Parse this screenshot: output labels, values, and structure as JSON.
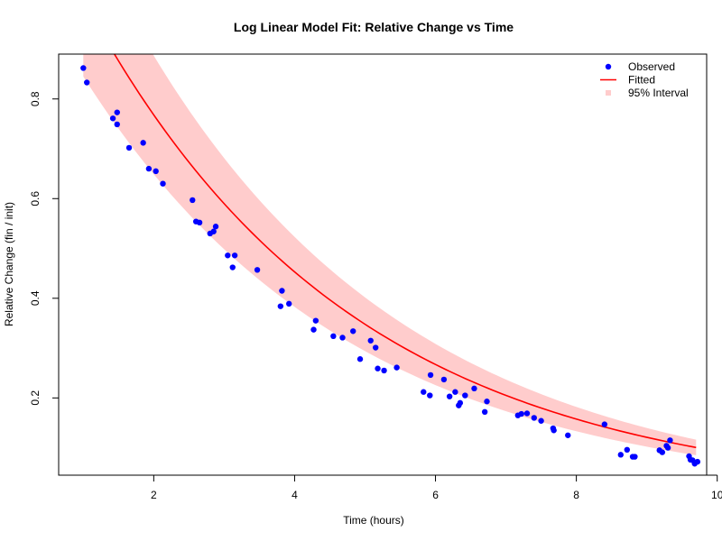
{
  "chart_data": {
    "type": "scatter",
    "title": "Log Linear Model Fit: Relative Change vs Time",
    "xlabel": "Time (hours)",
    "ylabel": "Relative Change (fin / init)",
    "xlim": [
      0.65,
      9.85
    ],
    "ylim": [
      0.045,
      0.89
    ],
    "xticks": [
      2,
      4,
      6,
      8,
      10
    ],
    "yticks": [
      0.2,
      0.4,
      0.6,
      0.8
    ],
    "grid": false,
    "legend_position": "top-right",
    "colors": {
      "observed": "#0000ff",
      "fitted": "#ff0000",
      "interval": "#ffcccc"
    },
    "legend": [
      {
        "label": "Observed",
        "kind": "point"
      },
      {
        "label": "Fitted",
        "kind": "line"
      },
      {
        "label": "95% Interval",
        "kind": "band"
      }
    ],
    "fit": {
      "a": 1.0,
      "b": 0.264
    },
    "interval": {
      "start": 1.0,
      "end": 9.7,
      "lower_ratio": 0.845,
      "upper_ratio": 1.155
    },
    "observed": [
      {
        "x": 1.0,
        "y": 0.862
      },
      {
        "x": 1.05,
        "y": 0.833
      },
      {
        "x": 1.42,
        "y": 0.761
      },
      {
        "x": 1.48,
        "y": 0.773
      },
      {
        "x": 1.48,
        "y": 0.749
      },
      {
        "x": 1.65,
        "y": 0.702
      },
      {
        "x": 1.85,
        "y": 0.712
      },
      {
        "x": 1.93,
        "y": 0.66
      },
      {
        "x": 2.03,
        "y": 0.655
      },
      {
        "x": 2.13,
        "y": 0.63
      },
      {
        "x": 2.55,
        "y": 0.597
      },
      {
        "x": 2.6,
        "y": 0.554
      },
      {
        "x": 2.65,
        "y": 0.552
      },
      {
        "x": 2.8,
        "y": 0.53
      },
      {
        "x": 2.85,
        "y": 0.534
      },
      {
        "x": 2.88,
        "y": 0.544
      },
      {
        "x": 3.05,
        "y": 0.486
      },
      {
        "x": 3.12,
        "y": 0.462
      },
      {
        "x": 3.15,
        "y": 0.486
      },
      {
        "x": 3.47,
        "y": 0.457
      },
      {
        "x": 3.8,
        "y": 0.384
      },
      {
        "x": 3.82,
        "y": 0.415
      },
      {
        "x": 3.92,
        "y": 0.389
      },
      {
        "x": 4.27,
        "y": 0.337
      },
      {
        "x": 4.3,
        "y": 0.355
      },
      {
        "x": 4.55,
        "y": 0.324
      },
      {
        "x": 4.68,
        "y": 0.321
      },
      {
        "x": 4.83,
        "y": 0.334
      },
      {
        "x": 4.93,
        "y": 0.278
      },
      {
        "x": 5.08,
        "y": 0.315
      },
      {
        "x": 5.15,
        "y": 0.301
      },
      {
        "x": 5.18,
        "y": 0.259
      },
      {
        "x": 5.27,
        "y": 0.255
      },
      {
        "x": 5.45,
        "y": 0.261
      },
      {
        "x": 5.83,
        "y": 0.212
      },
      {
        "x": 5.92,
        "y": 0.205
      },
      {
        "x": 5.93,
        "y": 0.246
      },
      {
        "x": 6.12,
        "y": 0.237
      },
      {
        "x": 6.2,
        "y": 0.203
      },
      {
        "x": 6.28,
        "y": 0.212
      },
      {
        "x": 6.33,
        "y": 0.185
      },
      {
        "x": 6.35,
        "y": 0.19
      },
      {
        "x": 6.42,
        "y": 0.205
      },
      {
        "x": 6.55,
        "y": 0.219
      },
      {
        "x": 6.7,
        "y": 0.172
      },
      {
        "x": 6.73,
        "y": 0.193
      },
      {
        "x": 7.17,
        "y": 0.165
      },
      {
        "x": 7.22,
        "y": 0.168
      },
      {
        "x": 7.3,
        "y": 0.169
      },
      {
        "x": 7.4,
        "y": 0.16
      },
      {
        "x": 7.5,
        "y": 0.154
      },
      {
        "x": 7.67,
        "y": 0.139
      },
      {
        "x": 7.68,
        "y": 0.135
      },
      {
        "x": 7.88,
        "y": 0.125
      },
      {
        "x": 8.4,
        "y": 0.147
      },
      {
        "x": 8.63,
        "y": 0.086
      },
      {
        "x": 8.72,
        "y": 0.096
      },
      {
        "x": 8.8,
        "y": 0.082
      },
      {
        "x": 8.83,
        "y": 0.082
      },
      {
        "x": 9.18,
        "y": 0.095
      },
      {
        "x": 9.22,
        "y": 0.091
      },
      {
        "x": 9.28,
        "y": 0.104
      },
      {
        "x": 9.3,
        "y": 0.1
      },
      {
        "x": 9.33,
        "y": 0.115
      },
      {
        "x": 9.6,
        "y": 0.083
      },
      {
        "x": 9.62,
        "y": 0.076
      },
      {
        "x": 9.65,
        "y": 0.075
      },
      {
        "x": 9.68,
        "y": 0.068
      },
      {
        "x": 9.72,
        "y": 0.072
      }
    ]
  }
}
